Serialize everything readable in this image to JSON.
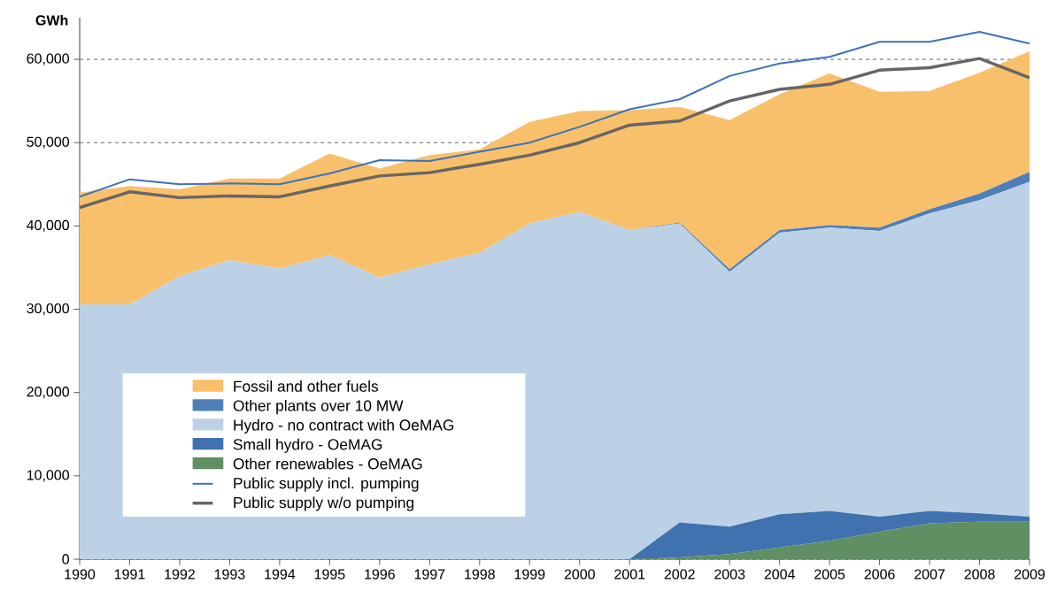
{
  "chart_data": {
    "type": "area",
    "ylabel": "GWh",
    "x": [
      1990,
      1991,
      1992,
      1993,
      1994,
      1995,
      1996,
      1997,
      1998,
      1999,
      2000,
      2001,
      2002,
      2003,
      2004,
      2005,
      2006,
      2007,
      2008,
      2009
    ],
    "stacked": true,
    "series": [
      {
        "name": "Other renewables - OeMAG",
        "color": "#5f8f62",
        "values": [
          0,
          0,
          0,
          0,
          0,
          0,
          0,
          0,
          0,
          0,
          0,
          0,
          200,
          600,
          1400,
          2200,
          3300,
          4300,
          4500,
          4500
        ]
      },
      {
        "name": "Small hydro - OeMAG",
        "color": "#3f72af",
        "values": [
          0,
          0,
          0,
          0,
          0,
          0,
          0,
          0,
          0,
          0,
          0,
          0,
          4200,
          3300,
          4000,
          3600,
          1800,
          1500,
          1000,
          600
        ]
      },
      {
        "name": "Hydro - no contract with OeMAG",
        "color": "#bcd1e6",
        "values": [
          30600,
          30600,
          34000,
          35900,
          34900,
          36500,
          33800,
          35400,
          36800,
          40300,
          41700,
          39500,
          35900,
          30600,
          33800,
          34000,
          34300,
          35700,
          37600,
          40200
        ]
      },
      {
        "name": "Other plants over 10 MW",
        "color": "#4f7fb8",
        "values": [
          0,
          0,
          0,
          0,
          0,
          0,
          0,
          0,
          0,
          0,
          0,
          0,
          100,
          300,
          300,
          300,
          400,
          500,
          800,
          1200
        ]
      },
      {
        "name": "Fossil and other fuels",
        "color": "#f9c06b",
        "values": [
          13400,
          14200,
          10400,
          9800,
          10800,
          12200,
          13100,
          13100,
          12400,
          12200,
          12100,
          14400,
          13900,
          17900,
          16300,
          18200,
          16300,
          14200,
          14500,
          14500
        ]
      },
      {
        "name": "Public supply incl. pumping",
        "type": "line",
        "color": "#3f72b8",
        "values": [
          43500,
          45600,
          45000,
          45100,
          45000,
          46300,
          47900,
          47800,
          48900,
          50000,
          51900,
          54000,
          55200,
          58000,
          59500,
          60300,
          62100,
          62100,
          63300,
          61900
        ]
      },
      {
        "name": "Public supply w/o pumping",
        "type": "line",
        "color": "#666666",
        "values": [
          42200,
          44100,
          43400,
          43600,
          43500,
          44800,
          46000,
          46400,
          47400,
          48500,
          50000,
          52100,
          52600,
          55000,
          56400,
          57000,
          58700,
          59000,
          60100,
          57800
        ]
      }
    ],
    "xlim": [
      1990,
      2009
    ],
    "xticks": [
      1990,
      1991,
      1992,
      1993,
      1994,
      1995,
      1996,
      1997,
      1998,
      1999,
      2000,
      2001,
      2002,
      2003,
      2004,
      2005,
      2006,
      2007,
      2008,
      2009
    ],
    "ylim": [
      0,
      65000
    ],
    "yticks": [
      {
        "value": 0,
        "label": "0"
      },
      {
        "value": 10000,
        "label": "10,000"
      },
      {
        "value": 20000,
        "label": "20,000"
      },
      {
        "value": 30000,
        "label": "30,000"
      },
      {
        "value": 40000,
        "label": "40,000"
      },
      {
        "value": 50000,
        "label": "50,000"
      },
      {
        "value": 60000,
        "label": "60,000"
      }
    ],
    "grid": "y",
    "legend": "bottom left",
    "line_style": "solid",
    "marker": "none"
  }
}
